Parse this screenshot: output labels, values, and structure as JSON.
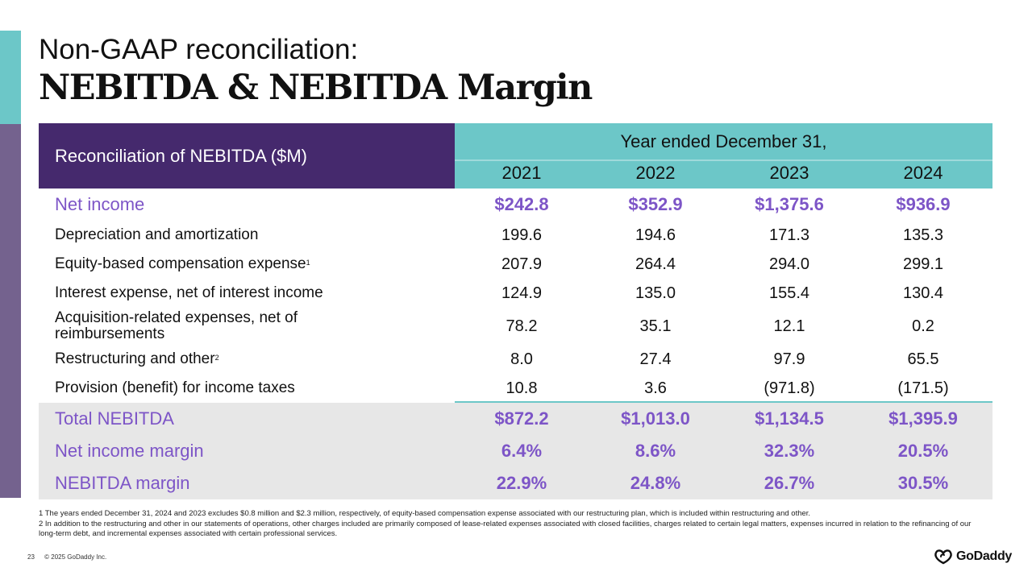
{
  "title": {
    "line1": "Non-GAAP reconciliation:",
    "line2": "NEBITDA & NEBITDA Margin"
  },
  "table": {
    "header_label": "Reconciliation of NEBITDA ($M)",
    "period_title": "Year ended December 31,",
    "years": [
      "2021",
      "2022",
      "2023",
      "2024"
    ],
    "rows": [
      {
        "label": "Net income",
        "sup": "",
        "values": [
          "$242.8",
          "$352.9",
          "$1,375.6",
          "$936.9"
        ]
      },
      {
        "label": "Depreciation and amortization",
        "sup": "",
        "values": [
          "199.6",
          "194.6",
          "171.3",
          "135.3"
        ]
      },
      {
        "label": "Equity-based compensation expense",
        "sup": "1",
        "values": [
          "207.9",
          "264.4",
          "294.0",
          "299.1"
        ]
      },
      {
        "label": "Interest expense, net of interest income",
        "sup": "",
        "values": [
          "124.9",
          "135.0",
          "155.4",
          "130.4"
        ]
      },
      {
        "label": "Acquisition-related expenses, net of reimbursements",
        "sup": "",
        "values": [
          "78.2",
          "35.1",
          "12.1",
          "0.2"
        ]
      },
      {
        "label": "Restructuring and other",
        "sup": "2",
        "values": [
          "8.0",
          "27.4",
          "97.9",
          "65.5"
        ]
      },
      {
        "label": "Provision (benefit) for income taxes",
        "sup": "",
        "values": [
          "10.8",
          "3.6",
          "(971.8)",
          "(171.5)"
        ]
      }
    ],
    "totals": [
      {
        "label": "Total NEBITDA",
        "values": [
          "$872.2",
          "$1,013.0",
          "$1,134.5",
          "$1,395.9"
        ]
      },
      {
        "label": "Net income margin",
        "values": [
          "6.4%",
          "8.6%",
          "32.3%",
          "20.5%"
        ]
      },
      {
        "label": "NEBITDA margin",
        "values": [
          "22.9%",
          "24.8%",
          "26.7%",
          "30.5%"
        ]
      }
    ]
  },
  "footnotes": [
    "1 The years ended December 31, 2024 and 2023 excludes $0.8 million and $2.3 million, respectively, of equity-based compensation expense associated with our restructuring plan, which is included within restructuring and other.",
    "2 In addition to the restructuring and other in our statements of operations, other charges included are primarily composed of lease-related expenses associated with closed facilities, charges related to certain legal matters, expenses incurred in relation to the refinancing of our long-term debt, and incremental expenses associated with certain professional services."
  ],
  "footer": {
    "page_number": "23",
    "copyright": "© 2025 GoDaddy Inc.",
    "logo_text": "GoDaddy"
  },
  "colors": {
    "purple_header": "#45296d",
    "teal": "#6cc7c8",
    "accent_purple": "#7d55c7",
    "side_purple": "#74628e"
  }
}
